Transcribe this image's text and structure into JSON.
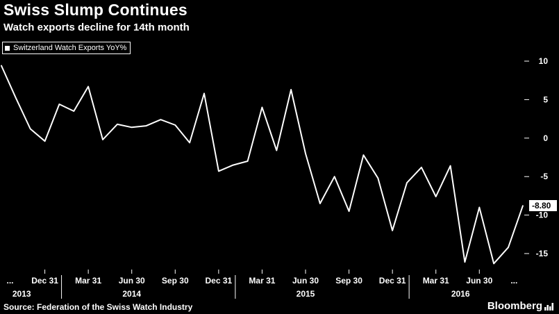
{
  "header": {
    "title": "Swiss Slump Continues",
    "subtitle": "Watch exports decline for 14th month"
  },
  "legend": {
    "label": "Switzerland Watch Exports YoY%"
  },
  "last_value_label": "-8.80",
  "footer": {
    "source": "Source: Federation of the Swiss Watch Industry",
    "brand": "Bloomberg"
  },
  "colors": {
    "background": "#000000",
    "line": "#ffffff",
    "text": "#ffffff",
    "badge_bg": "#ffffff",
    "badge_text": "#000000"
  },
  "chart_data": {
    "type": "line",
    "title": "Swiss Slump Continues",
    "subtitle": "Watch exports decline for 14th month",
    "grid": false,
    "legend_position": "top-left",
    "x": [
      "Sep 2013",
      "Oct 2013",
      "Nov 2013",
      "Dec 2013",
      "Jan 2014",
      "Feb 2014",
      "Mar 2014",
      "Apr 2014",
      "May 2014",
      "Jun 2014",
      "Jul 2014",
      "Aug 2014",
      "Sep 2014",
      "Oct 2014",
      "Nov 2014",
      "Dec 2014",
      "Jan 2015",
      "Feb 2015",
      "Mar 2015",
      "Apr 2015",
      "May 2015",
      "Jun 2015",
      "Jul 2015",
      "Aug 2015",
      "Sep 2015",
      "Oct 2015",
      "Nov 2015",
      "Dec 2015",
      "Jan 2016",
      "Feb 2016",
      "Mar 2016",
      "Apr 2016",
      "May 2016",
      "Jun 2016",
      "Jul 2016",
      "Aug 2016",
      "Sep 2016"
    ],
    "series": [
      {
        "name": "Switzerland Watch Exports YoY%",
        "values": [
          9.4,
          5.2,
          1.2,
          -0.4,
          4.4,
          3.5,
          6.7,
          -0.2,
          1.8,
          1.4,
          1.6,
          2.4,
          1.7,
          -0.6,
          5.8,
          -4.3,
          -3.5,
          -3.0,
          4.0,
          -1.6,
          6.3,
          -2.0,
          -8.5,
          -5.0,
          -9.5,
          -2.2,
          -5.2,
          -12.0,
          -5.8,
          -3.8,
          -7.6,
          -3.6,
          -16.1,
          -9.0,
          -16.3,
          -14.2,
          -8.8
        ]
      }
    ],
    "ylim": [
      -17.5,
      11.5
    ],
    "y_ticks": [
      10,
      5,
      0,
      -5,
      -10,
      -15
    ],
    "x_ticks": [
      {
        "label": "...",
        "i": 0.6
      },
      {
        "label": "Dec 31",
        "i": 3
      },
      {
        "label": "Mar 31",
        "i": 6
      },
      {
        "label": "Jun 30",
        "i": 9
      },
      {
        "label": "Sep 30",
        "i": 12
      },
      {
        "label": "Dec 31",
        "i": 15
      },
      {
        "label": "Mar 31",
        "i": 18
      },
      {
        "label": "Jun 30",
        "i": 21
      },
      {
        "label": "Sep 30",
        "i": 24
      },
      {
        "label": "Dec 31",
        "i": 27
      },
      {
        "label": "Mar 31",
        "i": 30
      },
      {
        "label": "Jun 30",
        "i": 33
      },
      {
        "label": "...",
        "i": 35.4
      }
    ],
    "years": [
      {
        "label": "2013",
        "i": 1.4
      },
      {
        "label": "2014",
        "i": 9
      },
      {
        "label": "2015",
        "i": 21
      },
      {
        "label": "2016",
        "i": 31.7
      }
    ],
    "year_separator_indices": [
      3,
      15,
      27
    ],
    "last_point_label": "-8.80"
  }
}
